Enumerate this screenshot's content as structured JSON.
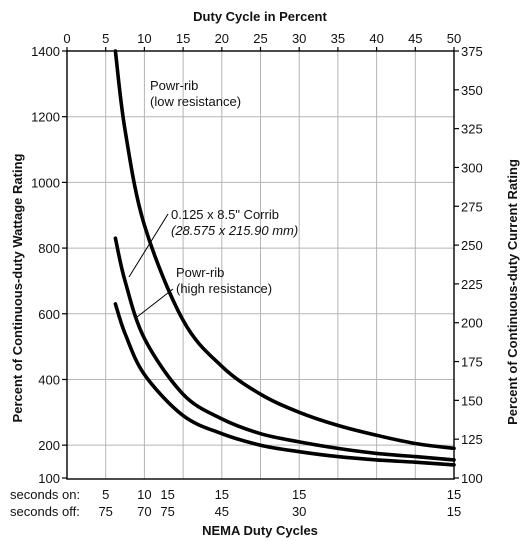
{
  "chart_data": {
    "type": "line",
    "title": "Duty Cycle in Percent",
    "xlabel": "NEMA Duty Cycles",
    "ylabel": "Percent of Continuous-duty Wattage Rating",
    "y2label": "Percent of Continuous-duty Current Rating",
    "xlim": [
      0,
      50
    ],
    "x_ticks": [
      0,
      5,
      10,
      15,
      20,
      25,
      30,
      35,
      40,
      45,
      50
    ],
    "ylim": [
      100,
      1400
    ],
    "y_ticks": [
      100,
      200,
      400,
      600,
      800,
      1000,
      1200,
      1400
    ],
    "y2lim": [
      100,
      375
    ],
    "y2_ticks": [
      100,
      125,
      150,
      175,
      200,
      225,
      250,
      275,
      300,
      325,
      350,
      375
    ],
    "grid": true,
    "nema_rows": [
      {
        "label": "seconds on:",
        "values": [
          {
            "x": 5,
            "v": "5"
          },
          {
            "x": 10,
            "v": "10"
          },
          {
            "x": 13,
            "v": "15"
          },
          {
            "x": 20,
            "v": "15"
          },
          {
            "x": 30,
            "v": "15"
          },
          {
            "x": 50,
            "v": "15"
          }
        ]
      },
      {
        "label": "seconds off:",
        "values": [
          {
            "x": 5,
            "v": "75"
          },
          {
            "x": 10,
            "v": "70"
          },
          {
            "x": 13,
            "v": "75"
          },
          {
            "x": 20,
            "v": "45"
          },
          {
            "x": 30,
            "v": "30"
          },
          {
            "x": 50,
            "v": "15"
          }
        ]
      }
    ],
    "series": [
      {
        "name": "Powr-rib (low resistance)",
        "x": [
          6.25,
          7.5,
          10,
          15,
          20,
          25,
          30,
          35,
          40,
          45,
          50
        ],
        "y": [
          1400,
          1160,
          870,
          580,
          440,
          355,
          300,
          260,
          230,
          205,
          190
        ]
      },
      {
        "name": "0.125 x 8.5\" Corrib (28.575 x 215.90 mm)",
        "x": [
          6.25,
          7.5,
          10,
          15,
          20,
          25,
          30,
          35,
          40,
          45,
          50
        ],
        "y": [
          830,
          700,
          525,
          355,
          280,
          235,
          210,
          190,
          175,
          165,
          155
        ]
      },
      {
        "name": "Powr-rib (high resistance)",
        "x": [
          6.25,
          7.5,
          10,
          15,
          20,
          25,
          30,
          35,
          40,
          45,
          50
        ],
        "y": [
          630,
          540,
          415,
          290,
          235,
          200,
          180,
          165,
          155,
          148,
          140
        ]
      }
    ],
    "annotations": [
      {
        "lines": [
          "Powr-rib",
          "(low resistance)"
        ],
        "styles": [
          "",
          ""
        ]
      },
      {
        "lines": [
          "0.125 x 8.5\" Corrib",
          "(28.575 x 215.90 mm)"
        ],
        "styles": [
          "",
          "italic"
        ]
      },
      {
        "lines": [
          "Powr-rib",
          "(high resistance)"
        ],
        "styles": [
          "",
          ""
        ]
      }
    ]
  }
}
